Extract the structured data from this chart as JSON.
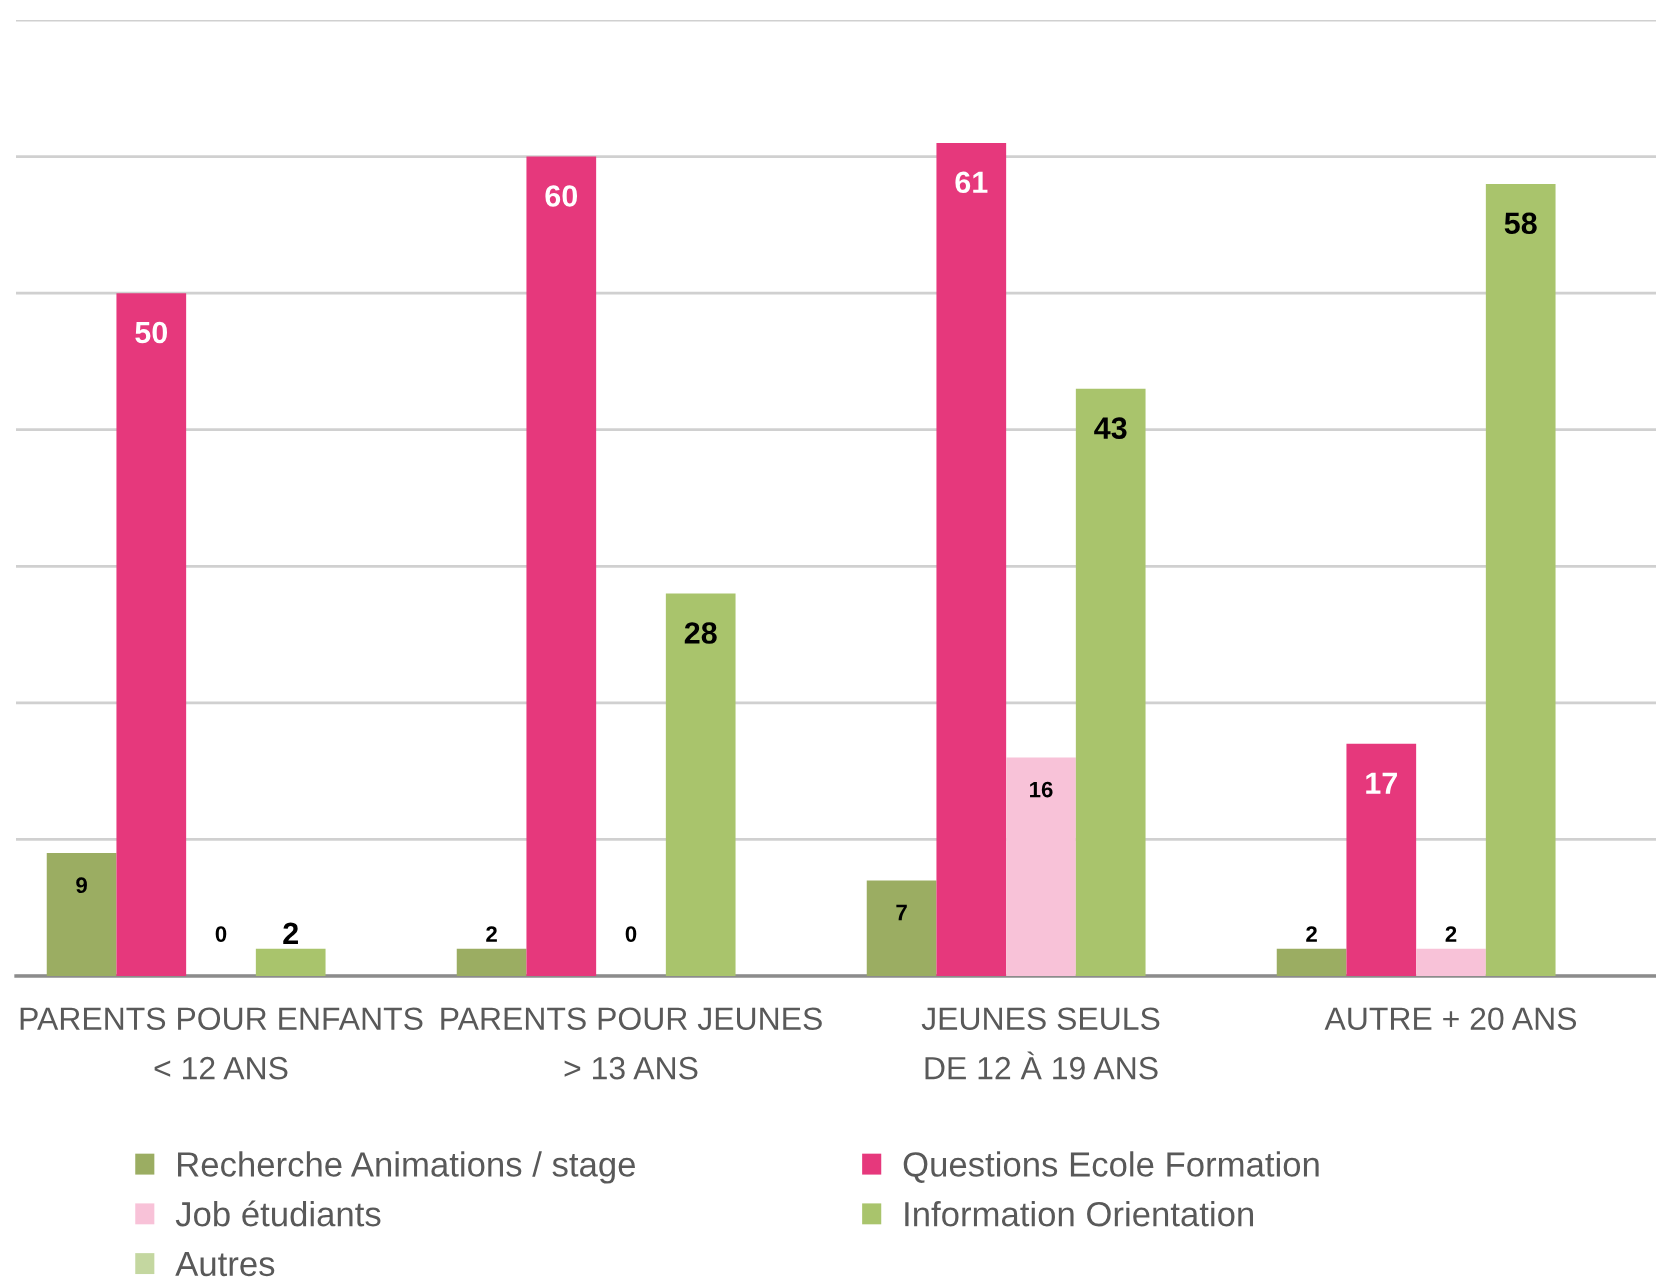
{
  "chart_data": {
    "type": "bar",
    "categories": [
      "PARENTS POUR ENFANTS\n< 12 ANS",
      "PARENTS POUR JEUNES\n> 13 ANS",
      "JEUNES SEULS\nDE 12 À 19 ANS",
      "AUTRE + 20 ANS"
    ],
    "series": [
      {
        "name": "Recherche Animations / stage",
        "color": "#9bad62",
        "values": [
          9,
          2,
          7,
          2
        ]
      },
      {
        "name": "Questions Ecole Formation",
        "color": "#e6387c",
        "values": [
          50,
          60,
          61,
          17
        ]
      },
      {
        "name": "Job étudiants",
        "color": "#f8c2d8",
        "values": [
          0,
          0,
          16,
          2
        ]
      },
      {
        "name": "Information Orientation",
        "color": "#a9c46c",
        "values": [
          2,
          28,
          43,
          58
        ]
      },
      {
        "name": "Autres",
        "color": "#c4d7a0",
        "values": [
          null,
          null,
          null,
          null
        ]
      }
    ],
    "ylim": [
      0,
      70
    ],
    "yticks": [
      {
        "value": 0,
        "label": null
      },
      {
        "value": 10,
        "label": null
      },
      {
        "value": 20,
        "label": null
      },
      {
        "value": 30,
        "label": null
      },
      {
        "value": 40,
        "label": null
      },
      {
        "value": 50,
        "label": null
      },
      {
        "value": 60,
        "label": null
      },
      {
        "value": 70,
        "label": null
      }
    ],
    "grid": "y",
    "tick_labels": "x",
    "data_labels": true,
    "legend": "bottom"
  }
}
